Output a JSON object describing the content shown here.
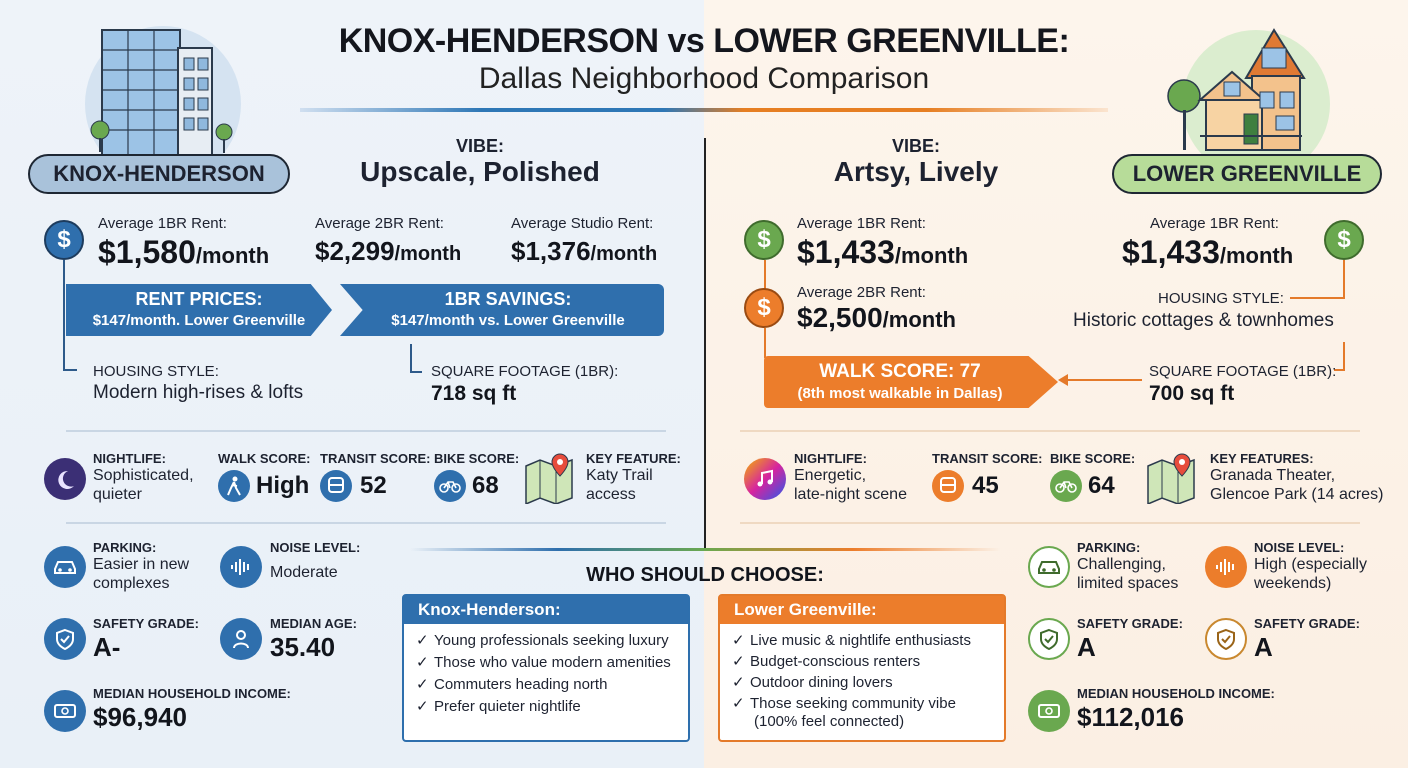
{
  "header": {
    "title": "KNOX-HENDERSON vs LOWER GREENVILLE:",
    "subtitle": "Dallas Neighborhood Comparison"
  },
  "colors": {
    "blue": "#2f6fad",
    "orange": "#ec7d2b",
    "green": "#6aa84f",
    "kh_pill": "#a9c2da",
    "lg_pill": "#b7dc99"
  },
  "left": {
    "name": "KNOX-HENDERSON",
    "vibe_label": "VIBE:",
    "vibe": "Upscale, Polished",
    "rent1_label": "Average 1BR Rent:",
    "rent1_value": "$1,580",
    "rent1_unit": "/month",
    "rent2_label": "Average 2BR Rent:",
    "rent2_value": "$2,299",
    "rent2_unit": "/month",
    "rent3_label": "Average Studio Rent:",
    "rent3_value": "$1,376",
    "rent3_unit": "/month",
    "banner1_title": "RENT PRICES:",
    "banner1_text": "$147/month​. Lower Greenville",
    "banner2_title": "1BR SAVINGS:",
    "banner2_text": "$147/month vs. Lower Greenville",
    "housing_label": "HOUSING STYLE:",
    "housing_value": "Modern high-rises & lofts",
    "sqft_label": "SQUARE FOOTAGE (1BR):",
    "sqft_value": "718 sq ft",
    "nightlife_label": "NIGHTLIFE:",
    "nightlife_value1": "Sophisticated,",
    "nightlife_value2": "quieter",
    "walk_label": "WALK SCORE:",
    "walk_value": "High",
    "transit_label": "TRANSIT SCORE:",
    "transit_value": "52",
    "bike_label": "BIKE SCORE:",
    "bike_value": "68",
    "feature_label": "KEY FEATURE:",
    "feature_value1": "Katy Trail",
    "feature_value2": "access",
    "parking_label": "PARKING:",
    "parking_value1": "Easier in new",
    "parking_value2": "complexes",
    "noise_label": "NOISE LEVEL:",
    "noise_value": "Moderate",
    "safety_label": "SAFETY GRADE:",
    "safety_value": "A-",
    "age_label": "MEDIAN AGE:",
    "age_value": "35.40",
    "income_label": "MEDIAN HOUSEHOLD INCOME:",
    "income_value": "$96,940",
    "icons": [
      "building-icon",
      "dollar-icon",
      "moon-icon",
      "walking-icon",
      "bus-icon",
      "bike-icon",
      "map-pin-icon",
      "car-icon",
      "sound-wave-icon",
      "shield-icon",
      "person-icon",
      "cash-icon"
    ]
  },
  "right": {
    "name": "LOWER GREENVILLE",
    "vibe_label": "VIBE:",
    "vibe": "Artsy, Lively",
    "rent1_label": "Average 1BR Rent:",
    "rent1_value": "$1,433",
    "rent1_unit": "/month",
    "rent2_label": "Average 2BR Rent:",
    "rent2_value": "$2,500",
    "rent2_unit": "/month",
    "rent1b_label": "Average 1BR Rent:",
    "rent1b_value": "$1,433",
    "rent1b_unit": "/month",
    "housing_label": "HOUSING STYLE:",
    "housing_value": "Historic cottages & townhomes",
    "walk_banner_title": "WALK SCORE: 77",
    "walk_banner_text": "(8th most walkable in Dallas)",
    "sqft_label": "SQUARE FOOTAGE (1BR):",
    "sqft_value": "700 sq ft",
    "nightlife_label": "NIGHTLIFE:",
    "nightlife_value1": "Energetic,",
    "nightlife_value2": "late-night scene",
    "transit_label": "TRANSIT SCORE:",
    "transit_value": "45",
    "bike_label": "BIKE SCORE:",
    "bike_value": "64",
    "feature_label": "KEY FEATURES:",
    "feature_value1": "Granada Theater,",
    "feature_value2": "Glencoe Park (14 acres)",
    "parking_label": "PARKING:",
    "parking_value1": "Challenging,",
    "parking_value2": "limited spaces",
    "noise_label": "NOISE LEVEL:",
    "noise_value1": "High (especially",
    "noise_value2": "weekends)",
    "safety_label": "SAFETY GRADE:",
    "safety_value": "A",
    "safety2_label": "SAFETY GRADE:",
    "safety2_value": "A",
    "income_label": "MEDIAN HOUSEHOLD INCOME:",
    "income_value": "$112,016"
  },
  "choose": {
    "title": "WHO SHOULD CHOOSE:",
    "kh_head": "Knox-Henderson:",
    "kh_items": [
      "Young professionals seeking luxury",
      "Those who value modern amenities",
      "Commuters heading north",
      "Prefer quieter nightlife"
    ],
    "lg_head": "Lower Greenville:",
    "lg_items": [
      "Live music & nightlife enthusiasts",
      "Budget-conscious renters",
      "Outdoor dining lovers",
      "Those seeking community vibe"
    ],
    "lg_note": "(100% feel connected)",
    "check": "✓"
  }
}
